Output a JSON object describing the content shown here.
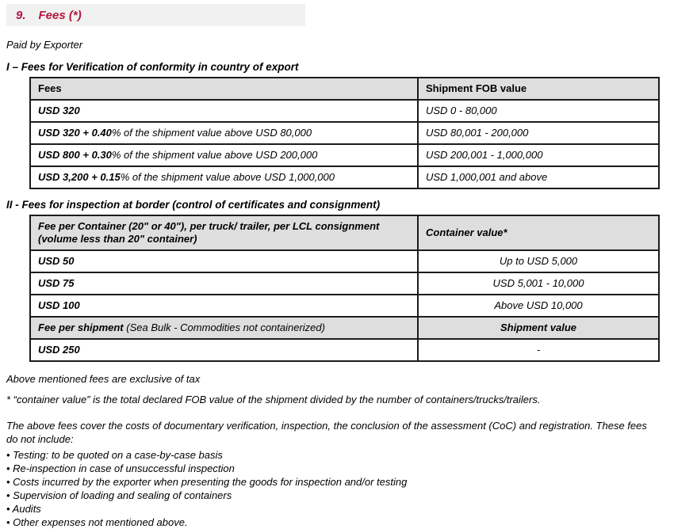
{
  "title": {
    "number": "9.",
    "text": "Fees (*)"
  },
  "intro": "Paid by Exporter",
  "section1": {
    "heading": "I – Fees for Verification of conformity in country of export",
    "col_fees": "Fees",
    "col_value": "Shipment FOB value",
    "rows": [
      {
        "bold": "USD 320",
        "rest": "",
        "value": "USD 0 - 80,000"
      },
      {
        "bold": "USD 320 + 0.40",
        "rest": "% of the shipment value above USD 80,000",
        "value": "USD 80,001 - 200,000"
      },
      {
        "bold": "USD 800 + 0.30",
        "rest": "% of the shipment value above USD 200,000",
        "value": "USD 200,001 - 1,000,000"
      },
      {
        "bold": "USD 3,200 + 0.15",
        "rest": "% of the shipment value above USD 1,000,000",
        "value": "USD 1,000,001 and above"
      }
    ]
  },
  "section2": {
    "heading": "II - Fees for inspection at border (control of certificates and consignment)",
    "col_fee": "Fee per Container (20\" or 40\"), per truck/ trailer, per LCL consignment (volume less than 20\" container)",
    "col_value": "Container value*",
    "rows": [
      {
        "fee": "USD 50",
        "value": "Up to USD 5,000"
      },
      {
        "fee": "USD 75",
        "value": "USD 5,001 - 10,000"
      },
      {
        "fee": "USD 100",
        "value": "Above USD 10,000"
      }
    ],
    "sub_bold": "Fee per shipment",
    "sub_rest": " (Sea Bulk - Commodities not containerized)",
    "sub_value": "Shipment value",
    "last_fee": "USD 250",
    "last_value": "-"
  },
  "notes": {
    "tax": "Above mentioned fees are exclusive of tax",
    "container": "* “container value” is the total declared FOB value of the shipment divided by the number of containers/trucks/trailers."
  },
  "coverage": {
    "paragraph": "The above fees cover the costs of documentary verification, inspection, the conclusion of the assessment (CoC) and registration. These fees do not include:",
    "bullets": [
      "• Testing: to be quoted on a case-by-case basis",
      "• Re-inspection in case of unsuccessful inspection",
      "• Costs incurred by the exporter when presenting the goods for inspection and/or testing",
      "• Supervision of loading and sealing of containers",
      "• Audits",
      "• Other expenses not mentioned above."
    ]
  },
  "colors": {
    "accent": "#B5153F",
    "title_bar_bg": "#F1F1F1",
    "table_header_bg": "#DEDEDE"
  }
}
